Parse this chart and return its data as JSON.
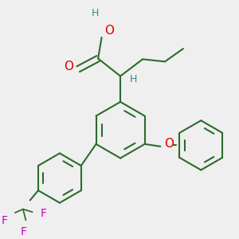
{
  "bg_color": "#efefef",
  "bond_color": "#2d6b2d",
  "o_color": "#dd0000",
  "h_color": "#3a8585",
  "f_color": "#cc00cc",
  "lw": 1.5,
  "figsize": [
    3.0,
    3.0
  ],
  "dpi": 100,
  "xlim": [
    -1.5,
    8.5
  ],
  "ylim": [
    -1.0,
    9.0
  ]
}
